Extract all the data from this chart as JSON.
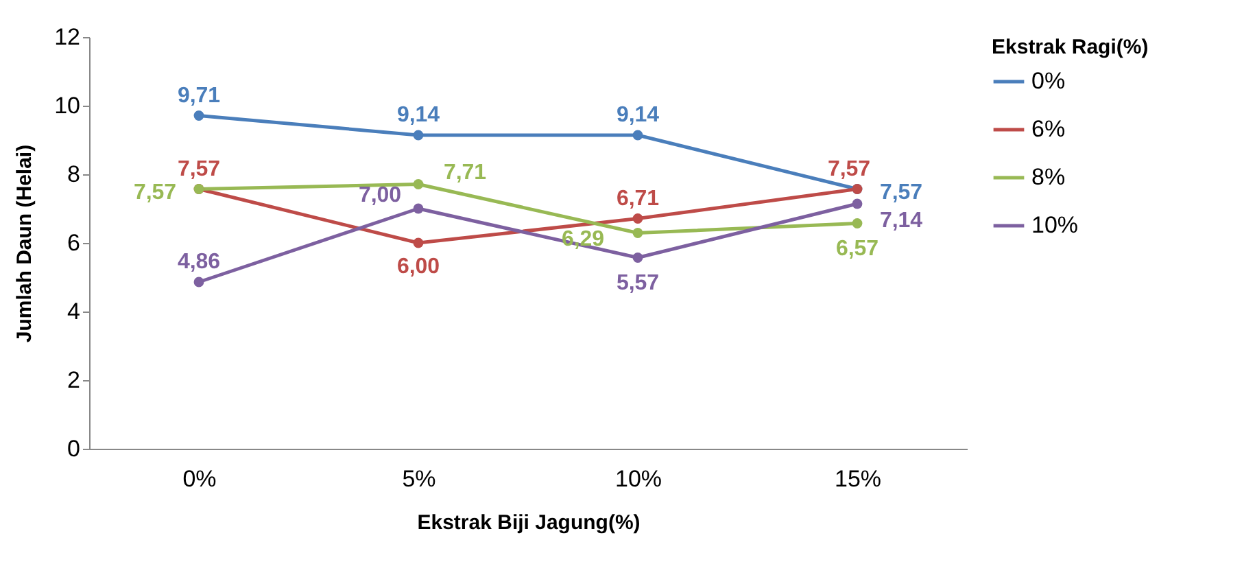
{
  "chart_data": {
    "type": "line",
    "xlabel": "Ekstrak Biji Jagung(%)",
    "ylabel": "Jumlah Daun  (Helai)",
    "legend_title": "Ekstrak Ragi(%)",
    "categories": [
      "0%",
      "5%",
      "10%",
      "15%"
    ],
    "series": [
      {
        "name": "0%",
        "color": "#4a7ebb",
        "values": [
          9.71,
          9.14,
          9.14,
          7.57
        ],
        "value_labels": [
          "9,71",
          "9,14",
          "9,14",
          "7,57"
        ]
      },
      {
        "name": "6%",
        "color": "#be4b48",
        "values": [
          7.57,
          6.0,
          6.71,
          7.57
        ],
        "value_labels": [
          "7,57",
          "6,00",
          "6,71",
          "7,57"
        ]
      },
      {
        "name": "8%",
        "color": "#98b954",
        "values": [
          7.57,
          7.71,
          6.29,
          6.57
        ],
        "value_labels": [
          "7,57",
          "7,71",
          "6,29",
          "6,57"
        ]
      },
      {
        "name": "10%",
        "color": "#7d60a0",
        "values": [
          4.86,
          7.0,
          5.57,
          7.14
        ],
        "value_labels": [
          "4,86",
          "7,00",
          "5,57",
          "7,14"
        ]
      }
    ],
    "ylim": [
      0,
      12
    ],
    "yticks": [
      0,
      2,
      4,
      6,
      8,
      10,
      12
    ],
    "grid": false,
    "legend": "right",
    "marker": "circle",
    "line_style": "solid"
  }
}
